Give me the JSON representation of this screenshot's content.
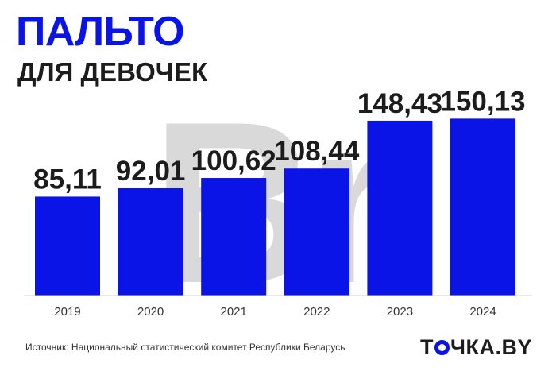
{
  "header": {
    "title": "ПАЛЬТО",
    "subtitle": "ДЛЯ ДЕВОЧЕК"
  },
  "chart_data": {
    "type": "bar",
    "title": "ПАЛЬТО ДЛЯ ДЕВОЧЕК",
    "categories": [
      "2019",
      "2020",
      "2021",
      "2022",
      "2023",
      "2024"
    ],
    "values": [
      85.11,
      92.01,
      100.62,
      108.44,
      148.43,
      150.13
    ],
    "value_labels": [
      "85,11",
      "92,01",
      "100,62",
      "108,44",
      "148,43",
      "150,13"
    ],
    "watermark": "Br",
    "ylim": [
      0,
      155
    ],
    "grid": false,
    "colors": {
      "bar": "#0a14e6",
      "label": "#1c1c1c",
      "watermark": "#d9d9d9",
      "axis": "#d0d0d0"
    }
  },
  "footer": {
    "source": "Источник: Национальный статистический комитет Республики Беларусь",
    "logo_left": "Т",
    "logo_right": "ЧКА.BY"
  }
}
